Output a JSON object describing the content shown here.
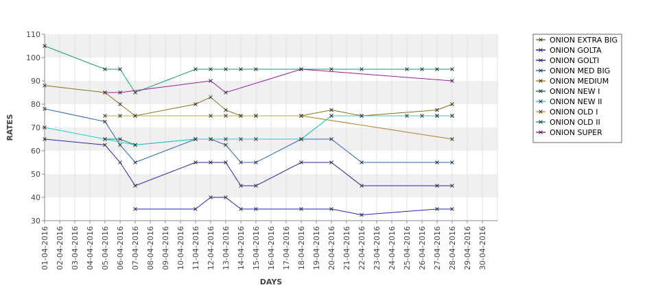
{
  "chart_data": {
    "type": "line",
    "title": "",
    "xlabel": "DAYS",
    "ylabel": "RATES",
    "ylim": [
      30,
      110
    ],
    "yticks": [
      30,
      40,
      50,
      60,
      70,
      80,
      90,
      100,
      110
    ],
    "grid": true,
    "legend_position": "top-right",
    "categories": [
      "01-04-2016",
      "02-04-2016",
      "03-04-2016",
      "04-04-2016",
      "05-04-2016",
      "06-04-2016",
      "07-04-2016",
      "08-04-2016",
      "09-04-2016",
      "10-04-2016",
      "11-04-2016",
      "12-04-2016",
      "13-04-2016",
      "14-04-2016",
      "15-04-2016",
      "16-04-2016",
      "17-04-2016",
      "18-04-2016",
      "19-04-2016",
      "20-04-2016",
      "21-04-2016",
      "22-04-2016",
      "23-04-2016",
      "24-04-2016",
      "25-04-2016",
      "26-04-2016",
      "27-04-2016",
      "28-04-2016",
      "29-04-2016",
      "30-04-2016"
    ],
    "series": [
      {
        "name": "ONION EXTRA BIG",
        "color": "#8c6d1f",
        "points": [
          [
            1,
            88
          ],
          [
            5,
            85
          ],
          [
            6,
            80
          ],
          [
            7,
            75
          ],
          [
            11,
            80
          ],
          [
            12,
            83
          ],
          [
            13,
            77.5
          ],
          [
            14,
            75
          ],
          [
            15,
            75
          ],
          [
            18,
            75
          ],
          [
            20,
            77.5
          ],
          [
            22,
            75
          ],
          [
            27,
            77.5
          ],
          [
            28,
            80
          ]
        ]
      },
      {
        "name": "ONION GOLTA",
        "color": "#3a1a9c",
        "points": [
          [
            1,
            65
          ],
          [
            5,
            62.5
          ],
          [
            6,
            55
          ],
          [
            7,
            45
          ],
          [
            11,
            55
          ],
          [
            12,
            55
          ],
          [
            13,
            55
          ],
          [
            14,
            45
          ],
          [
            15,
            45
          ],
          [
            18,
            55
          ],
          [
            20,
            55
          ],
          [
            22,
            45
          ],
          [
            27,
            45
          ],
          [
            28,
            45
          ]
        ]
      },
      {
        "name": "ONION GOLTI",
        "color": "#2222bb",
        "points": [
          [
            7,
            35
          ],
          [
            11,
            35
          ],
          [
            12,
            40
          ],
          [
            13,
            40
          ],
          [
            14,
            35
          ],
          [
            15,
            35
          ],
          [
            18,
            35
          ],
          [
            20,
            35
          ],
          [
            22,
            32.5
          ],
          [
            27,
            35
          ],
          [
            28,
            35
          ]
        ]
      },
      {
        "name": "ONION MED BIG",
        "color": "#2a66aa",
        "points": [
          [
            1,
            78
          ],
          [
            5,
            72.5
          ],
          [
            6,
            62.5
          ],
          [
            7,
            55
          ],
          [
            11,
            65
          ],
          [
            12,
            65
          ],
          [
            13,
            62.5
          ],
          [
            14,
            55
          ],
          [
            15,
            55
          ],
          [
            18,
            65
          ],
          [
            20,
            65
          ],
          [
            22,
            55
          ],
          [
            27,
            55
          ],
          [
            28,
            55
          ]
        ]
      },
      {
        "name": "ONION MEDIUM",
        "color": "#b07d1a",
        "points": [
          [
            18,
            75
          ],
          [
            28,
            65
          ]
        ]
      },
      {
        "name": "ONION NEW I",
        "color": "#1a7a6a",
        "points": [
          [
            5,
            65
          ],
          [
            6,
            65
          ],
          [
            7,
            62.5
          ],
          [
            11,
            65
          ],
          [
            12,
            65
          ],
          [
            13,
            65
          ],
          [
            14,
            65
          ],
          [
            15,
            65
          ],
          [
            18,
            65
          ],
          [
            20,
            75
          ],
          [
            22,
            75
          ],
          [
            27,
            75
          ],
          [
            28,
            75
          ]
        ]
      },
      {
        "name": "ONION NEW II",
        "color": "#22cccc",
        "points": [
          [
            1,
            70
          ],
          [
            5,
            65
          ],
          [
            7,
            62.5
          ],
          [
            11,
            65
          ],
          [
            18,
            65
          ],
          [
            20,
            75
          ],
          [
            22,
            75
          ],
          [
            25,
            75
          ],
          [
            26,
            75
          ],
          [
            27,
            75
          ],
          [
            28,
            75
          ]
        ]
      },
      {
        "name": "ONION OLD I",
        "color": "#bbaa10",
        "points": [
          [
            5,
            75
          ],
          [
            6,
            75
          ],
          [
            7,
            75
          ],
          [
            12,
            75
          ],
          [
            13,
            75
          ],
          [
            14,
            75
          ],
          [
            15,
            75
          ],
          [
            18,
            75
          ]
        ]
      },
      {
        "name": "ONION OLD II",
        "color": "#1a9a6a",
        "points": [
          [
            1,
            105
          ],
          [
            5,
            95
          ],
          [
            6,
            95
          ],
          [
            7,
            85
          ],
          [
            11,
            95
          ],
          [
            12,
            95
          ],
          [
            13,
            95
          ],
          [
            14,
            95
          ],
          [
            15,
            95
          ],
          [
            18,
            95
          ],
          [
            20,
            95
          ],
          [
            22,
            95
          ],
          [
            25,
            95
          ],
          [
            26,
            95
          ],
          [
            27,
            95
          ],
          [
            28,
            95
          ]
        ]
      },
      {
        "name": "ONION SUPER",
        "color": "#9a1a9a",
        "points": [
          [
            5,
            85
          ],
          [
            6,
            85
          ],
          [
            12,
            90
          ],
          [
            13,
            85
          ],
          [
            18,
            95
          ],
          [
            28,
            90
          ]
        ]
      }
    ]
  }
}
